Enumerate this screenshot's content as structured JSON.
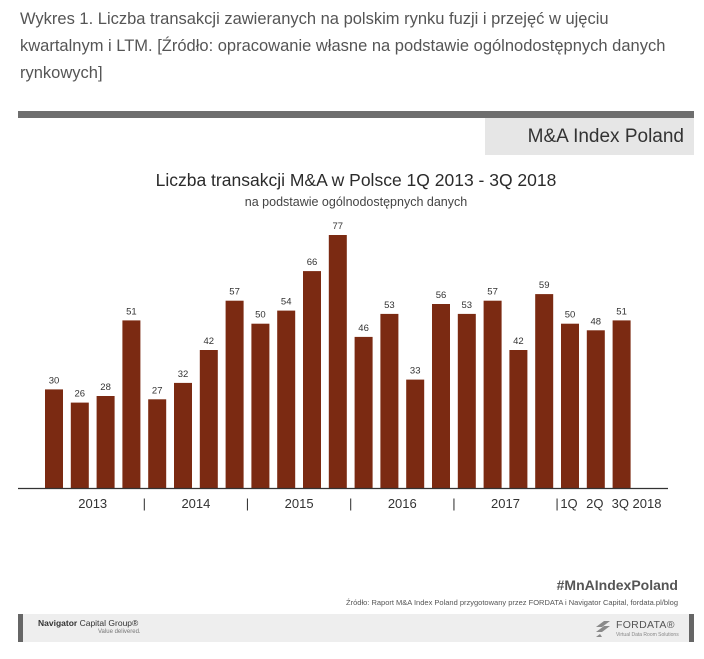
{
  "caption": "Wykres 1. Liczba transakcji zawieranych na polskim rynku fuzji i przejęć w ujęciu kwartalnym i LTM. [Źródło: opracowanie własne na podstawie ogólnodostępnych danych rynkowych]",
  "index_label": "M&A Index Poland",
  "hashtag": "#MnAIndexPoland",
  "source": "Źródło: Raport M&A Index Poland przygotowany przez FORDATA i Navigator Capital, fordata.pl/blog",
  "logos": {
    "navigator_brand": "Navigator",
    "navigator_rest": " Capital Group",
    "navigator_mark": "®",
    "navigator_tagline": "Value delivered.",
    "fordata_name": "FORDATA",
    "fordata_mark": "®",
    "fordata_tagline": "Virtual Data Room Solutions"
  },
  "chart_data": {
    "type": "bar",
    "title": "Liczba transakcji M&A w Polsce 1Q 2013 - 3Q 2018",
    "subtitle": "na podstawie ogólnodostępnych danych",
    "values": [
      30,
      26,
      28,
      51,
      27,
      32,
      42,
      57,
      50,
      54,
      66,
      77,
      46,
      53,
      33,
      56,
      53,
      57,
      42,
      59,
      50,
      48,
      51
    ],
    "bar_color": "#7b2a12",
    "year_labels": [
      "2013",
      "2014",
      "2015",
      "2016",
      "2017"
    ],
    "separator": "|",
    "tail_labels": [
      "1Q",
      "2Q",
      "3Q 2018"
    ],
    "ylim": [
      0,
      80
    ],
    "grid": false,
    "legend": "none"
  }
}
